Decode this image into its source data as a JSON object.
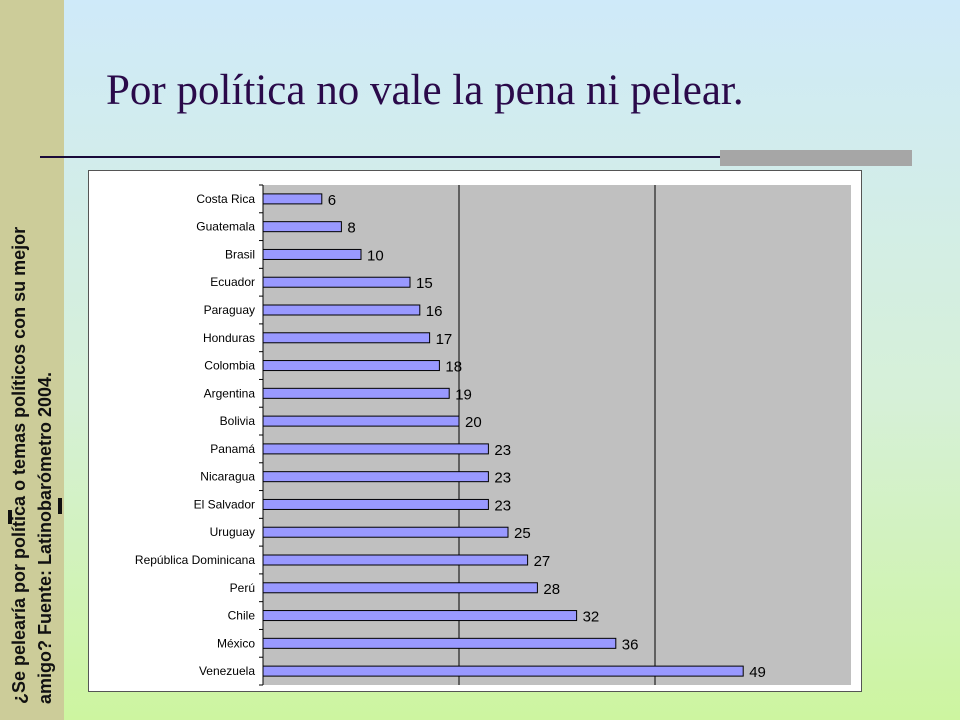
{
  "slide": {
    "title": "Por política no vale la pena ni pelear.",
    "side_line1": "¿Se pelearía por política o temas políticos con su mejor",
    "side_line2": "amigo?  Fuente: Latinobarómetro 2004."
  },
  "colors": {
    "bar_fill": "#9999ff",
    "plot_bg": "#c0c0c0",
    "title": "#2a0a4a",
    "side_band": "#cccc99"
  },
  "chart_data": {
    "type": "bar",
    "orientation": "horizontal",
    "categories": [
      "Costa Rica",
      "Guatemala",
      "Brasil",
      "Ecuador",
      "Paraguay",
      "Honduras",
      "Colombia",
      "Argentina",
      "Bolivia",
      "Panamá",
      "Nicaragua",
      "El Salvador",
      "Uruguay",
      "República Dominicana",
      "Perú",
      "Chile",
      "México",
      "Venezuela"
    ],
    "values": [
      6,
      8,
      10,
      15,
      16,
      17,
      18,
      19,
      20,
      23,
      23,
      23,
      25,
      27,
      28,
      32,
      36,
      49
    ],
    "xlim": [
      0,
      60
    ],
    "grid": true,
    "legend": false
  }
}
